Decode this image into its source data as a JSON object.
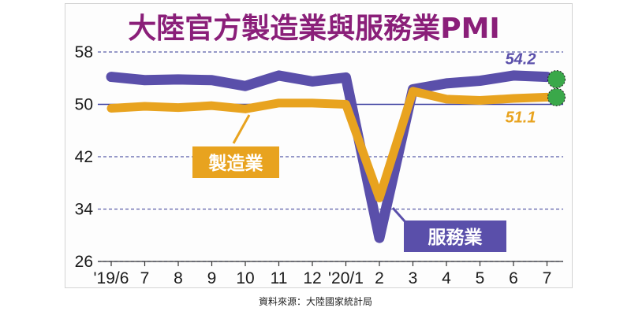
{
  "chart_data": {
    "type": "line",
    "title": "大陸官方製造業與服務業PMI",
    "categories": [
      "'19/6",
      "7",
      "8",
      "9",
      "10",
      "11",
      "12",
      "'20/1",
      "2",
      "3",
      "4",
      "5",
      "6",
      "7"
    ],
    "y_ticks": [
      "58",
      "50",
      "42",
      "34",
      "26"
    ],
    "ylim": [
      26,
      58
    ],
    "grid": "horizontal dashed",
    "series": [
      {
        "name": "服務業",
        "color": "#5a4faa",
        "values": [
          54.2,
          53.7,
          53.8,
          53.7,
          52.8,
          54.4,
          53.5,
          54.1,
          29.6,
          52.3,
          53.2,
          53.6,
          54.4,
          54.2
        ],
        "end_label": "54.2"
      },
      {
        "name": "製造業",
        "color": "#e8a31f",
        "values": [
          49.4,
          49.7,
          49.5,
          49.8,
          49.3,
          50.2,
          50.2,
          50.0,
          35.7,
          52.0,
          50.8,
          50.6,
          50.9,
          51.1
        ],
        "end_label": "51.1"
      }
    ],
    "source": "資料來源：大陸國家統計局"
  }
}
